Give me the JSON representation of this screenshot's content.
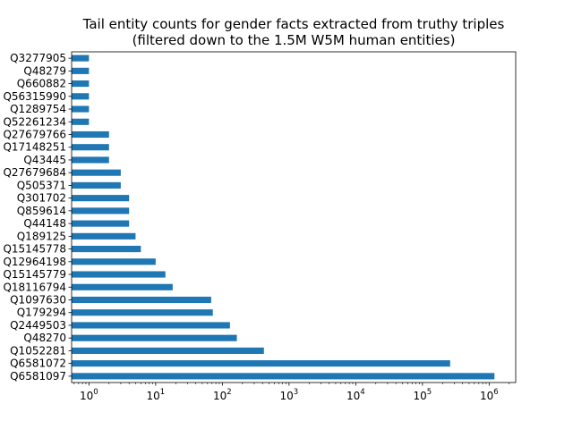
{
  "chart_data": {
    "type": "bar",
    "orientation": "horizontal",
    "title": [
      "Tail entity counts for gender facts extracted from truthy triples",
      "(filtered down to the 1.5M W5M human entities)"
    ],
    "xlabel": "",
    "ylabel": "",
    "x_scale": "log",
    "xlim": [
      0.55,
      2500000
    ],
    "x_ticks": [
      1,
      10,
      100,
      1000,
      10000,
      100000,
      1000000
    ],
    "x_tick_labels": [
      {
        "base": "10",
        "exp": "0"
      },
      {
        "base": "10",
        "exp": "1"
      },
      {
        "base": "10",
        "exp": "2"
      },
      {
        "base": "10",
        "exp": "3"
      },
      {
        "base": "10",
        "exp": "4"
      },
      {
        "base": "10",
        "exp": "5"
      },
      {
        "base": "10",
        "exp": "6"
      }
    ],
    "grid": false,
    "bar_color": "#1f77b4",
    "categories": [
      "Q6581097",
      "Q6581072",
      "Q1052281",
      "Q48270",
      "Q2449503",
      "Q179294",
      "Q1097630",
      "Q18116794",
      "Q15145779",
      "Q12964198",
      "Q15145778",
      "Q189125",
      "Q44148",
      "Q859614",
      "Q301702",
      "Q505371",
      "Q27679684",
      "Q43445",
      "Q17148251",
      "Q27679766",
      "Q52261234",
      "Q1289754",
      "Q56315990",
      "Q660882",
      "Q48279",
      "Q3277905"
    ],
    "values": [
      1200000,
      260000,
      420,
      165,
      130,
      72,
      68,
      18,
      14,
      10,
      6,
      5,
      4,
      4,
      4,
      3,
      3,
      2,
      2,
      2,
      1,
      1,
      1,
      1,
      1,
      1
    ]
  }
}
